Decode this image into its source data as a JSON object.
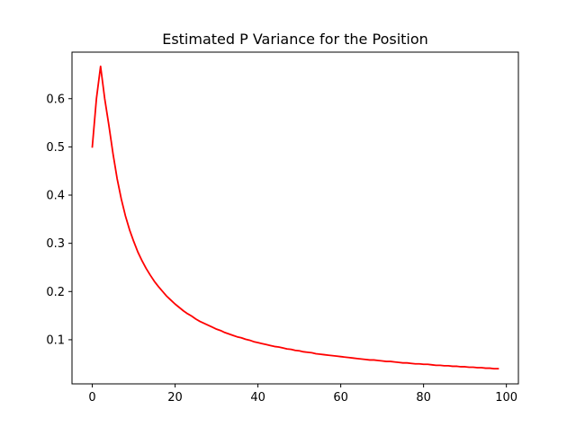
{
  "chart_data": {
    "type": "line",
    "title": "Estimated P Variance for the Position",
    "xlabel": "",
    "ylabel": "",
    "xlim": [
      -4.9,
      102.9
    ],
    "ylim": [
      0.0085,
      0.6965
    ],
    "x_ticks": [
      0,
      20,
      40,
      60,
      80,
      100
    ],
    "y_ticks": [
      0.1,
      0.2,
      0.3,
      0.4,
      0.5,
      0.6
    ],
    "x_tick_labels": [
      "0",
      "20",
      "40",
      "60",
      "80",
      "100"
    ],
    "y_tick_labels": [
      "0.1",
      "0.2",
      "0.3",
      "0.4",
      "0.5",
      "0.6"
    ],
    "grid": false,
    "legend": "none",
    "series": [
      {
        "color": "#ff0000",
        "x": [
          0,
          1,
          2,
          3,
          4,
          5,
          6,
          7,
          8,
          9,
          10,
          11,
          12,
          13,
          14,
          15,
          16,
          17,
          18,
          19,
          20,
          21,
          22,
          23,
          24,
          25,
          26,
          27,
          28,
          29,
          30,
          31,
          32,
          33,
          34,
          35,
          36,
          37,
          38,
          39,
          40,
          41,
          42,
          43,
          44,
          45,
          46,
          47,
          48,
          49,
          50,
          51,
          52,
          53,
          54,
          55,
          56,
          57,
          58,
          59,
          60,
          61,
          62,
          63,
          64,
          65,
          66,
          67,
          68,
          69,
          70,
          71,
          72,
          73,
          74,
          75,
          76,
          77,
          78,
          79,
          80,
          81,
          82,
          83,
          84,
          85,
          86,
          87,
          88,
          89,
          90,
          91,
          92,
          93,
          94,
          95,
          96,
          97,
          98
        ],
        "values": [
          0.5,
          0.6,
          0.667,
          0.6,
          0.545,
          0.486,
          0.434,
          0.392,
          0.357,
          0.328,
          0.304,
          0.282,
          0.264,
          0.248,
          0.234,
          0.221,
          0.21,
          0.2,
          0.19,
          0.182,
          0.174,
          0.167,
          0.16,
          0.154,
          0.149,
          0.143,
          0.138,
          0.134,
          0.13,
          0.126,
          0.122,
          0.119,
          0.115,
          0.112,
          0.109,
          0.106,
          0.104,
          0.101,
          0.099,
          0.096,
          0.094,
          0.092,
          0.09,
          0.088,
          0.086,
          0.085,
          0.083,
          0.081,
          0.08,
          0.078,
          0.077,
          0.075,
          0.074,
          0.073,
          0.071,
          0.07,
          0.069,
          0.068,
          0.067,
          0.066,
          0.065,
          0.064,
          0.063,
          0.062,
          0.061,
          0.06,
          0.059,
          0.058,
          0.058,
          0.057,
          0.056,
          0.055,
          0.055,
          0.054,
          0.053,
          0.052,
          0.052,
          0.051,
          0.05,
          0.05,
          0.049,
          0.049,
          0.048,
          0.047,
          0.047,
          0.046,
          0.046,
          0.045,
          0.045,
          0.044,
          0.044,
          0.043,
          0.043,
          0.042,
          0.042,
          0.041,
          0.041,
          0.04,
          0.04
        ]
      }
    ]
  }
}
